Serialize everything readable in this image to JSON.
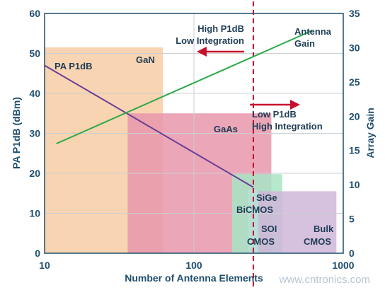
{
  "chart_data": {
    "type": "line",
    "xlabel": "Number of Antenna Elements",
    "ylabel_left": "PA P1dB (dBm)",
    "ylabel_right": "Array Gain",
    "x_scale": "log",
    "xlim": [
      10,
      1000
    ],
    "ylim_left": [
      0,
      60
    ],
    "ylim_right": [
      0,
      35
    ],
    "x_ticks": [
      "10",
      "100",
      "1000"
    ],
    "y_ticks_left": [
      "0",
      "10",
      "20",
      "30",
      "40",
      "50",
      "60"
    ],
    "y_ticks_right": [
      "0",
      "5",
      "10",
      "15",
      "20",
      "25",
      "30",
      "35"
    ],
    "grid": true,
    "regions": [
      {
        "name": "GaN",
        "x": [
          10,
          62
        ],
        "y_top": 51.5,
        "color": "#f8cda4"
      },
      {
        "name": "GaAs",
        "x": [
          36,
          330
        ],
        "y_top": 35,
        "color": "#e896ac"
      },
      {
        "name": "SiGe BiCMOS",
        "x": [
          180,
          390
        ],
        "y_top": 19.8,
        "color": "#a8e4c4"
      },
      {
        "name": "SOI CMOS",
        "x": [
          230,
          270
        ],
        "y_top": 15.8,
        "color": "#b7dfd8"
      },
      {
        "name": "Bulk CMOS",
        "x": [
          270,
          900
        ],
        "y_top": 15.5,
        "color": "#cfb6d9"
      }
    ],
    "series": [
      {
        "name": "PA P1dB",
        "axis": "left",
        "color": "#6a3f98",
        "x": [
          10,
          250
        ],
        "y": [
          47,
          16.5
        ]
      },
      {
        "name": "Antenna Gain",
        "axis": "right",
        "color": "#2eaa4a",
        "x": [
          12,
          620
        ],
        "y": [
          16,
          32.5
        ]
      }
    ],
    "threshold_x": 250,
    "annotations": {
      "left_top": "High P1dB",
      "left_bottom": "Low Integration",
      "right_top": "Low P1dB",
      "right_bottom": "High Integration"
    },
    "labels": {
      "pa": "PA P1dB",
      "gain_1": "Antenna",
      "gain_2": "Gain",
      "gan": "GaN",
      "gaas": "GaAs",
      "sige_1": "SiGe",
      "sige_2": "BiCMOS",
      "soi_1": "SOI",
      "soi_2": "CMOS",
      "bulk_1": "Bulk",
      "bulk_2": "CMOS"
    },
    "watermark": "www.cntronics.com"
  }
}
